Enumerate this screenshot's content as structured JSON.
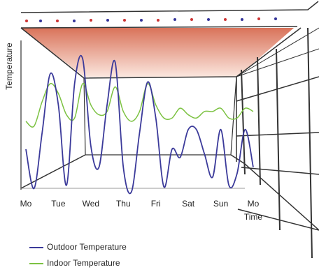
{
  "chart_data": {
    "type": "line",
    "x": [
      0,
      0.25,
      0.5,
      0.75,
      1,
      1.25,
      1.5,
      1.75,
      2,
      2.25,
      2.5,
      2.75,
      3,
      3.25,
      3.5,
      3.75,
      4,
      4.25,
      4.5,
      4.75,
      5,
      5.25,
      5.5,
      5.75,
      6,
      6.25,
      6.5,
      6.75,
      7
    ],
    "xlim": [
      0,
      7
    ],
    "xticks": [
      {
        "value": 0,
        "label": "Mo"
      },
      {
        "value": 1,
        "label": "Tue"
      },
      {
        "value": 2,
        "label": "Wed"
      },
      {
        "value": 3,
        "label": "Thu"
      },
      {
        "value": 4,
        "label": "Fri"
      },
      {
        "value": 5,
        "label": "Sat"
      },
      {
        "value": 6,
        "label": "Sun"
      },
      {
        "value": 7,
        "label": "Mo"
      }
    ],
    "ylim": [
      0,
      10
    ],
    "x_label": "Time",
    "y_label": "Temperature",
    "series": [
      {
        "name": "Outdoor Temperature",
        "color": "#3b3a9a",
        "values": [
          2.6,
          0.2,
          3.6,
          7.2,
          5.3,
          0.4,
          6.6,
          8.1,
          2.8,
          1.5,
          5.3,
          7.9,
          1.5,
          0,
          3.6,
          6.7,
          4.5,
          0.3,
          2.6,
          2.1,
          3.8,
          3.8,
          2.3,
          0.9,
          3.8,
          0.4,
          1.1,
          3.8,
          1.5
        ]
      },
      {
        "name": "Indoor Temperature",
        "color": "#7cc242",
        "values": [
          4.3,
          4.0,
          5.5,
          6.6,
          6.0,
          4.7,
          4.5,
          6.6,
          5.3,
          4.7,
          4.9,
          6.4,
          4.9,
          4.3,
          4.9,
          6.6,
          5.3,
          4.5,
          4.5,
          5.1,
          4.7,
          4.5,
          4.9,
          4.9,
          5.1,
          4.5,
          4.5,
          5.1,
          4.9
        ]
      }
    ]
  }
}
